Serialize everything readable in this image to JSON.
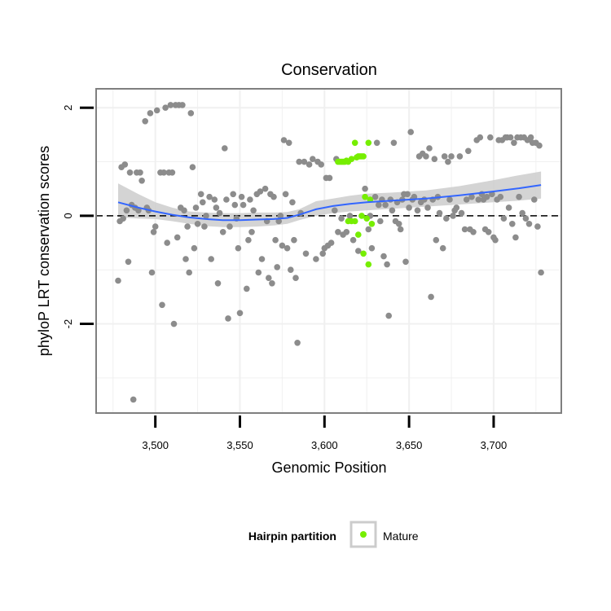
{
  "chart_data": {
    "type": "scatter",
    "title": "Conservation",
    "xlabel": "Genomic Position",
    "ylabel": "phyloP LRT conservation scores",
    "xlim": [
      3465,
      3740
    ],
    "ylim": [
      -3.65,
      2.35
    ],
    "x_ticks": [
      3500,
      3550,
      3600,
      3650,
      3700
    ],
    "x_tick_labels": [
      "3,500",
      "3,550",
      "3,600",
      "3,650",
      "3,700"
    ],
    "y_ticks": [
      2,
      0,
      -2
    ],
    "y_tick_labels": [
      "2",
      "0",
      "-2"
    ],
    "grid": true,
    "reference_line": {
      "y": 0,
      "style": "dashed"
    },
    "colors": {
      "other": "#8c8c8c",
      "mature": "#76ee00",
      "smooth": "#3366ff",
      "ribbon": "#cccccc",
      "panel_border": "#7f7f7f",
      "grid": "#f0f0f0"
    },
    "legend": {
      "title": "Hairpin partition",
      "position": "bottom",
      "entries": [
        "Mature"
      ]
    },
    "series": [
      {
        "name": "Mature",
        "points": [
          [
            3608,
            1.0
          ],
          [
            3609,
            1.0
          ],
          [
            3610,
            1.0
          ],
          [
            3611,
            1.0
          ],
          [
            3612,
            1.0
          ],
          [
            3613,
            1.02
          ],
          [
            3614,
            1.0
          ],
          [
            3616,
            1.05
          ],
          [
            3618,
            1.35
          ],
          [
            3619,
            1.08
          ],
          [
            3620,
            1.1
          ],
          [
            3621,
            1.1
          ],
          [
            3622,
            1.1
          ],
          [
            3623,
            1.1
          ],
          [
            3624,
            0.35
          ],
          [
            3626,
            1.35
          ],
          [
            3627,
            0.3
          ],
          [
            3614,
            -0.1
          ],
          [
            3616,
            -0.1
          ],
          [
            3618,
            -0.1
          ],
          [
            3620,
            -0.35
          ],
          [
            3622,
            0.0
          ],
          [
            3623,
            -0.7
          ],
          [
            3625,
            -0.05
          ],
          [
            3626,
            -0.9
          ],
          [
            3628,
            -0.15
          ]
        ]
      },
      {
        "name": "Other",
        "points": [
          [
            3478,
            -1.2
          ],
          [
            3479,
            -0.1
          ],
          [
            3480,
            0.9
          ],
          [
            3481,
            -0.05
          ],
          [
            3482,
            0.95
          ],
          [
            3483,
            0.1
          ],
          [
            3484,
            -0.85
          ],
          [
            3485,
            0.8
          ],
          [
            3486,
            0.2
          ],
          [
            3487,
            -3.4
          ],
          [
            3488,
            0.15
          ],
          [
            3489,
            0.8
          ],
          [
            3490,
            0.1
          ],
          [
            3491,
            0.8
          ],
          [
            3492,
            0.65
          ],
          [
            3494,
            1.75
          ],
          [
            3495,
            0.15
          ],
          [
            3496,
            0.1
          ],
          [
            3497,
            1.9
          ],
          [
            3498,
            -1.05
          ],
          [
            3499,
            -0.3
          ],
          [
            3500,
            -0.2
          ],
          [
            3501,
            1.95
          ],
          [
            3503,
            0.8
          ],
          [
            3504,
            -1.65
          ],
          [
            3505,
            0.8
          ],
          [
            3506,
            2.0
          ],
          [
            3507,
            -0.5
          ],
          [
            3508,
            0.8
          ],
          [
            3509,
            2.05
          ],
          [
            3510,
            0.8
          ],
          [
            3511,
            -2.0
          ],
          [
            3512,
            2.05
          ],
          [
            3513,
            -0.4
          ],
          [
            3514,
            2.05
          ],
          [
            3515,
            0.15
          ],
          [
            3516,
            2.05
          ],
          [
            3517,
            0.1
          ],
          [
            3518,
            -0.8
          ],
          [
            3519,
            -0.2
          ],
          [
            3520,
            -1.05
          ],
          [
            3521,
            1.9
          ],
          [
            3522,
            0.9
          ],
          [
            3523,
            -0.6
          ],
          [
            3524,
            0.15
          ],
          [
            3525,
            -0.15
          ],
          [
            3527,
            0.4
          ],
          [
            3528,
            0.25
          ],
          [
            3529,
            -0.2
          ],
          [
            3530,
            0.0
          ],
          [
            3532,
            0.35
          ],
          [
            3533,
            -0.8
          ],
          [
            3535,
            0.3
          ],
          [
            3536,
            0.15
          ],
          [
            3537,
            -1.25
          ],
          [
            3538,
            0.05
          ],
          [
            3540,
            -0.3
          ],
          [
            3541,
            1.25
          ],
          [
            3542,
            0.3
          ],
          [
            3543,
            -1.9
          ],
          [
            3544,
            -0.2
          ],
          [
            3546,
            0.4
          ],
          [
            3547,
            0.2
          ],
          [
            3548,
            -0.05
          ],
          [
            3549,
            -0.6
          ],
          [
            3550,
            -1.8
          ],
          [
            3551,
            0.35
          ],
          [
            3552,
            0.2
          ],
          [
            3554,
            -1.35
          ],
          [
            3555,
            -0.45
          ],
          [
            3556,
            0.3
          ],
          [
            3557,
            -0.3
          ],
          [
            3558,
            0.1
          ],
          [
            3560,
            0.4
          ],
          [
            3561,
            -1.05
          ],
          [
            3562,
            0.45
          ],
          [
            3563,
            -0.8
          ],
          [
            3565,
            0.5
          ],
          [
            3566,
            -0.1
          ],
          [
            3567,
            -1.15
          ],
          [
            3568,
            0.4
          ],
          [
            3569,
            -1.25
          ],
          [
            3570,
            0.35
          ],
          [
            3571,
            -0.45
          ],
          [
            3572,
            -0.95
          ],
          [
            3573,
            -0.1
          ],
          [
            3574,
            0.0
          ],
          [
            3575,
            -0.55
          ],
          [
            3576,
            1.4
          ],
          [
            3577,
            0.4
          ],
          [
            3578,
            -0.6
          ],
          [
            3579,
            1.35
          ],
          [
            3580,
            -1.0
          ],
          [
            3581,
            0.25
          ],
          [
            3582,
            -0.45
          ],
          [
            3583,
            -1.15
          ],
          [
            3584,
            -2.35
          ],
          [
            3585,
            1.0
          ],
          [
            3586,
            0.05
          ],
          [
            3588,
            1.0
          ],
          [
            3589,
            -0.7
          ],
          [
            3591,
            0.95
          ],
          [
            3593,
            1.05
          ],
          [
            3595,
            -0.8
          ],
          [
            3596,
            1.0
          ],
          [
            3598,
            0.95
          ],
          [
            3599,
            -0.7
          ],
          [
            3600,
            -0.6
          ],
          [
            3601,
            0.7
          ],
          [
            3602,
            -0.55
          ],
          [
            3603,
            0.7
          ],
          [
            3604,
            -0.5
          ],
          [
            3606,
            0.1
          ],
          [
            3607,
            1.05
          ],
          [
            3608,
            -0.3
          ],
          [
            3610,
            -0.05
          ],
          [
            3611,
            -0.35
          ],
          [
            3613,
            -0.3
          ],
          [
            3615,
            0.0
          ],
          [
            3617,
            -0.45
          ],
          [
            3620,
            -0.65
          ],
          [
            3624,
            0.5
          ],
          [
            3626,
            -0.25
          ],
          [
            3627,
            0.0
          ],
          [
            3628,
            -0.6
          ],
          [
            3630,
            0.35
          ],
          [
            3631,
            1.35
          ],
          [
            3632,
            0.2
          ],
          [
            3633,
            -0.1
          ],
          [
            3634,
            0.3
          ],
          [
            3635,
            -0.75
          ],
          [
            3636,
            0.2
          ],
          [
            3637,
            -0.9
          ],
          [
            3638,
            -1.85
          ],
          [
            3639,
            0.3
          ],
          [
            3640,
            0.1
          ],
          [
            3641,
            1.35
          ],
          [
            3642,
            -0.1
          ],
          [
            3643,
            0.25
          ],
          [
            3644,
            -0.15
          ],
          [
            3645,
            -0.25
          ],
          [
            3646,
            0.3
          ],
          [
            3647,
            0.4
          ],
          [
            3648,
            -0.85
          ],
          [
            3649,
            0.4
          ],
          [
            3650,
            0.15
          ],
          [
            3651,
            1.55
          ],
          [
            3652,
            0.3
          ],
          [
            3653,
            0.35
          ],
          [
            3655,
            0.1
          ],
          [
            3656,
            1.1
          ],
          [
            3657,
            0.25
          ],
          [
            3658,
            1.15
          ],
          [
            3659,
            0.3
          ],
          [
            3660,
            1.1
          ],
          [
            3661,
            0.15
          ],
          [
            3662,
            1.25
          ],
          [
            3663,
            -1.5
          ],
          [
            3664,
            0.3
          ],
          [
            3665,
            1.05
          ],
          [
            3666,
            -0.45
          ],
          [
            3667,
            0.35
          ],
          [
            3668,
            0.05
          ],
          [
            3670,
            -0.6
          ],
          [
            3671,
            1.1
          ],
          [
            3672,
            -0.05
          ],
          [
            3673,
            1.0
          ],
          [
            3674,
            0.3
          ],
          [
            3675,
            1.1
          ],
          [
            3676,
            0.0
          ],
          [
            3677,
            0.1
          ],
          [
            3678,
            0.15
          ],
          [
            3680,
            1.1
          ],
          [
            3681,
            0.05
          ],
          [
            3683,
            -0.25
          ],
          [
            3684,
            0.3
          ],
          [
            3685,
            1.2
          ],
          [
            3686,
            -0.25
          ],
          [
            3687,
            0.35
          ],
          [
            3688,
            -0.3
          ],
          [
            3690,
            1.4
          ],
          [
            3691,
            0.3
          ],
          [
            3692,
            1.45
          ],
          [
            3693,
            0.4
          ],
          [
            3694,
            0.3
          ],
          [
            3695,
            -0.25
          ],
          [
            3696,
            0.35
          ],
          [
            3697,
            -0.3
          ],
          [
            3698,
            1.45
          ],
          [
            3699,
            0.4
          ],
          [
            3700,
            -0.4
          ],
          [
            3701,
            -0.45
          ],
          [
            3702,
            0.3
          ],
          [
            3703,
            1.4
          ],
          [
            3704,
            0.35
          ],
          [
            3705,
            1.4
          ],
          [
            3706,
            -0.05
          ],
          [
            3707,
            1.45
          ],
          [
            3708,
            1.45
          ],
          [
            3709,
            0.15
          ],
          [
            3710,
            1.45
          ],
          [
            3711,
            -0.15
          ],
          [
            3712,
            1.35
          ],
          [
            3713,
            -0.4
          ],
          [
            3714,
            1.45
          ],
          [
            3715,
            0.35
          ],
          [
            3716,
            1.45
          ],
          [
            3717,
            0.05
          ],
          [
            3718,
            1.45
          ],
          [
            3719,
            -0.05
          ],
          [
            3720,
            1.4
          ],
          [
            3721,
            -0.15
          ],
          [
            3722,
            1.45
          ],
          [
            3723,
            1.35
          ],
          [
            3724,
            0.3
          ],
          [
            3725,
            1.35
          ],
          [
            3726,
            -0.2
          ],
          [
            3727,
            1.3
          ],
          [
            3728,
            -1.05
          ]
        ]
      }
    ],
    "smooth": {
      "x": [
        3478,
        3490,
        3500,
        3510,
        3520,
        3530,
        3540,
        3550,
        3560,
        3570,
        3578,
        3585,
        3595,
        3605,
        3615,
        3625,
        3640,
        3660,
        3680,
        3700,
        3715,
        3728
      ],
      "y": [
        0.25,
        0.15,
        0.08,
        0.02,
        -0.03,
        -0.06,
        -0.08,
        -0.08,
        -0.07,
        -0.06,
        -0.04,
        0.02,
        0.12,
        0.18,
        0.22,
        0.25,
        0.28,
        0.32,
        0.38,
        0.45,
        0.51,
        0.57
      ],
      "lower": [
        -0.03,
        -0.05,
        -0.06,
        -0.1,
        -0.15,
        -0.19,
        -0.21,
        -0.21,
        -0.2,
        -0.18,
        -0.15,
        -0.08,
        0.0,
        0.05,
        0.08,
        0.1,
        0.13,
        0.17,
        0.21,
        0.25,
        0.28,
        0.32
      ],
      "upper": [
        0.6,
        0.4,
        0.25,
        0.15,
        0.08,
        0.06,
        0.05,
        0.05,
        0.06,
        0.06,
        0.07,
        0.12,
        0.27,
        0.32,
        0.37,
        0.41,
        0.43,
        0.47,
        0.55,
        0.66,
        0.75,
        0.82
      ]
    }
  }
}
